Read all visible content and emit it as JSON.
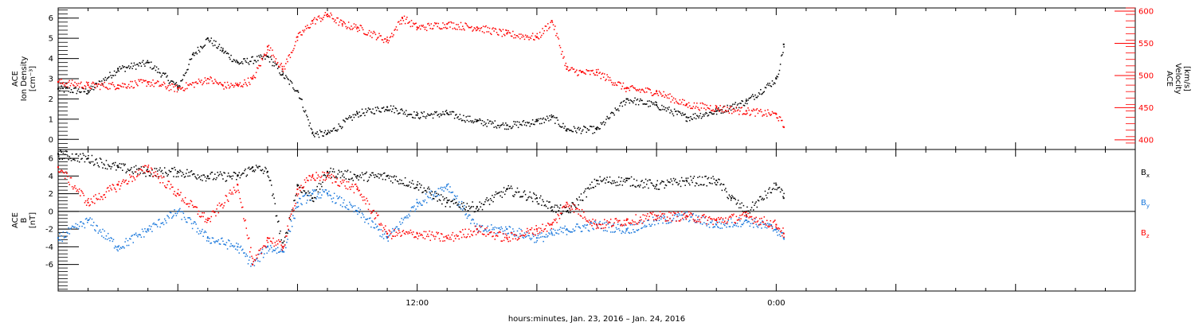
{
  "figure": {
    "xlabel": "hours:minutes, Jan. 23, 2016 – Jan. 24, 2016",
    "x_ticks": [
      "12:00",
      "0:00"
    ]
  },
  "colors": {
    "black": "#000000",
    "red": "#ff0000",
    "blue": "#1a78dc"
  },
  "chart_data": [
    {
      "type": "scatter",
      "panel": "top",
      "x_unit": "hours since Jan. 23, 2016 00:00",
      "xlim": [
        0,
        36
      ],
      "grid": false,
      "left_axis": {
        "label_lines": [
          "ACE",
          "Ion Density",
          "[cm⁻³]"
        ],
        "ylim": [
          -0.5,
          6.5
        ],
        "ticks": [
          "0",
          "1",
          "2",
          "3",
          "4",
          "5",
          "6"
        ],
        "color": "#000000"
      },
      "right_axis": {
        "label_lines": [
          "ACE",
          "Velocity",
          "[km/s]"
        ],
        "ylim": [
          385,
          605
        ],
        "ticks": [
          "400",
          "450",
          "500",
          "550",
          "600"
        ],
        "color": "#ff0000"
      },
      "series": [
        {
          "axis": "left",
          "color": "#000000",
          "x": [
            0,
            1,
            2,
            3,
            4,
            4.5,
            5,
            5.5,
            6,
            7,
            7.5,
            8,
            8.5,
            9,
            10,
            11,
            12,
            13,
            14,
            15,
            16,
            16.5,
            17,
            18,
            19,
            20,
            21,
            22,
            23,
            24,
            24.25
          ],
          "y": [
            2.5,
            2.4,
            3.5,
            3.8,
            2.6,
            4.2,
            5.0,
            4.4,
            3.8,
            4.1,
            3.2,
            2.4,
            0.3,
            0.3,
            1.3,
            1.6,
            1.2,
            1.3,
            0.9,
            0.7,
            0.9,
            1.1,
            0.5,
            0.5,
            2.0,
            1.7,
            1.1,
            1.4,
            1.9,
            3.0,
            4.7
          ]
        },
        {
          "axis": "right",
          "color": "#ff0000",
          "x": [
            0,
            1,
            2,
            3,
            4,
            5,
            5.5,
            6,
            6.5,
            7,
            7.5,
            8,
            8.5,
            9,
            9.5,
            10,
            11,
            11.5,
            12,
            13,
            14,
            15,
            16,
            16.5,
            17,
            17.5,
            18,
            19,
            20,
            21,
            22,
            23,
            24,
            24.25
          ],
          "y": [
            490,
            485,
            485,
            490,
            480,
            495,
            485,
            485,
            495,
            545,
            510,
            560,
            585,
            595,
            580,
            575,
            555,
            590,
            575,
            580,
            575,
            565,
            560,
            585,
            510,
            505,
            505,
            480,
            475,
            455,
            450,
            445,
            440,
            420
          ]
        }
      ]
    },
    {
      "type": "scatter",
      "panel": "bottom",
      "x_unit": "hours since Jan. 23, 2016 00:00",
      "xlim": [
        0,
        36
      ],
      "grid": false,
      "left_axis": {
        "label_lines": [
          "ACE",
          "B",
          "[nT]"
        ],
        "ylim": [
          -9,
          7
        ],
        "ticks": [
          "-6",
          "-4",
          "-2",
          "0",
          "2",
          "4",
          "6"
        ],
        "color": "#000000"
      },
      "zero_line": 0,
      "series": [
        {
          "name": "Bx",
          "color": "#000000",
          "x": [
            0,
            1,
            2,
            3,
            4,
            5,
            6,
            6.5,
            7,
            7.5,
            8,
            8.5,
            9,
            10,
            11,
            12,
            13,
            14,
            15,
            16,
            16.5,
            17,
            18,
            19,
            20,
            21,
            22,
            22.5,
            23,
            24,
            24.25
          ],
          "y": [
            6.5,
            6.0,
            5.0,
            4.5,
            4.5,
            4.0,
            4.0,
            5.0,
            4.5,
            -4.0,
            3.0,
            1.5,
            4.5,
            4.0,
            4.0,
            3.0,
            1.0,
            0.5,
            2.5,
            1.5,
            0.5,
            0.0,
            3.5,
            3.5,
            3.0,
            3.5,
            3.5,
            1.5,
            0.0,
            3.0,
            1.5
          ]
        },
        {
          "name": "By",
          "color": "#1a78dc",
          "x": [
            0,
            1,
            2,
            3,
            4,
            5,
            6,
            6.5,
            7,
            7.5,
            8,
            8.5,
            9,
            10,
            11,
            12,
            13,
            14,
            15,
            16,
            16.5,
            17,
            18,
            19,
            20,
            21,
            22,
            23,
            24,
            24.25
          ],
          "y": [
            -3.0,
            -1.0,
            -4.0,
            -2.0,
            0.0,
            -3.0,
            -4.0,
            -6.0,
            -4.0,
            -4.5,
            1.0,
            2.0,
            2.0,
            0.0,
            -3.0,
            1.0,
            3.0,
            -2.0,
            -2.0,
            -3.0,
            -2.5,
            -2.0,
            -1.5,
            -2.0,
            -1.0,
            -0.5,
            -1.5,
            -1.0,
            -2.0,
            -3.0
          ]
        },
        {
          "name": "Bz",
          "color": "#ff0000",
          "x": [
            0,
            1,
            2,
            3,
            4,
            5,
            6,
            6.5,
            7,
            7.5,
            8,
            8.5,
            9,
            10,
            11,
            12,
            13,
            14,
            15,
            16,
            16.5,
            17,
            18,
            19,
            20,
            21,
            22,
            23,
            24,
            24.25
          ],
          "y": [
            5.0,
            1.0,
            3.0,
            5.0,
            2.0,
            -1.0,
            3.0,
            -6.0,
            -3.0,
            -4.0,
            2.5,
            4.0,
            4.0,
            2.5,
            -2.5,
            -2.5,
            -3.0,
            -2.0,
            -3.0,
            -2.0,
            -1.5,
            1.0,
            -1.5,
            -1.0,
            -0.5,
            -0.5,
            -1.0,
            -0.5,
            -1.5,
            -2.5
          ]
        }
      ],
      "legend": {
        "placement": "right",
        "labels": [
          {
            "base": "B",
            "sub": "x"
          },
          {
            "base": "B",
            "sub": "y"
          },
          {
            "base": "B",
            "sub": "z"
          }
        ]
      }
    }
  ]
}
